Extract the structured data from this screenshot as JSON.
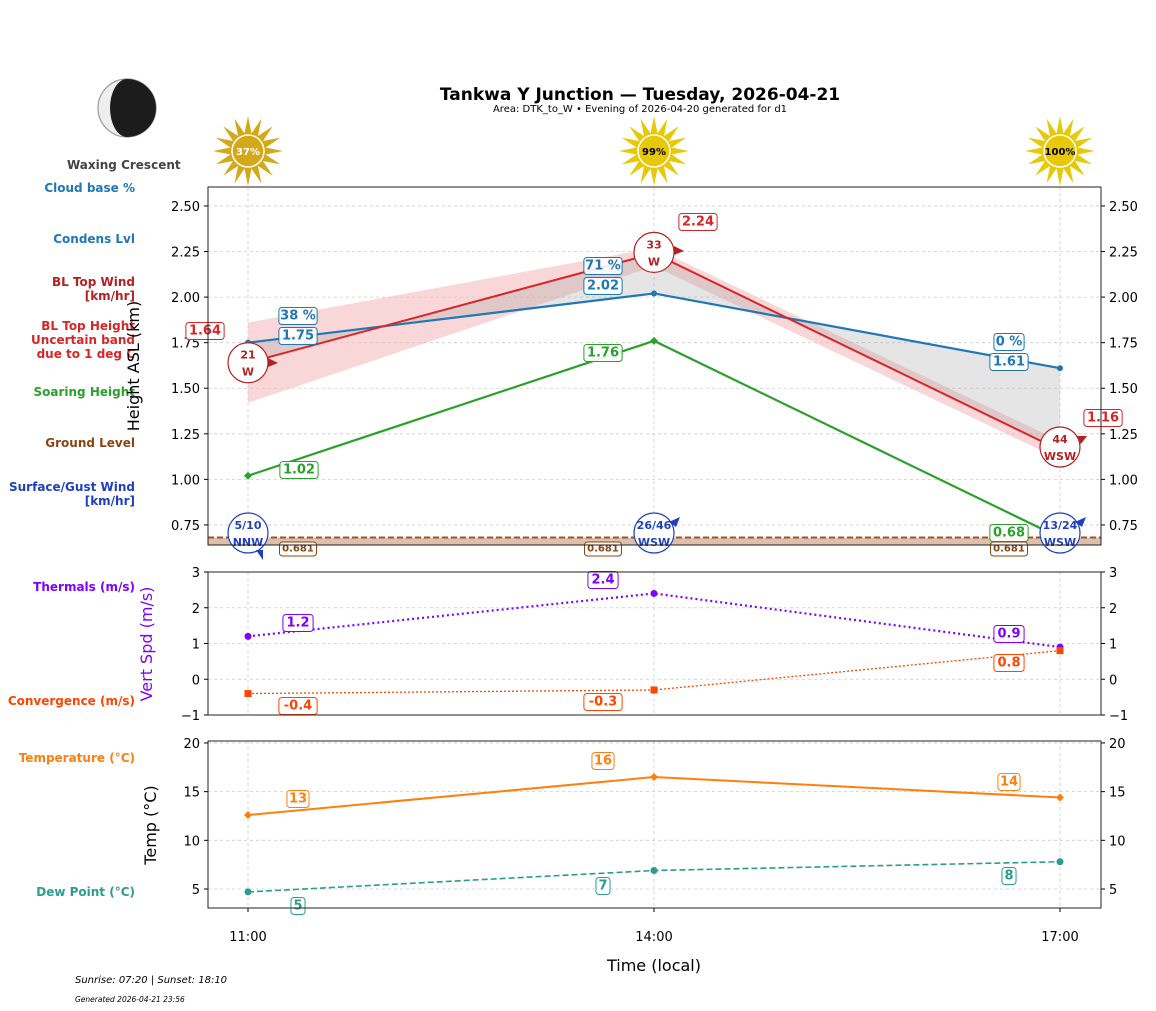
{
  "header": {
    "title": "Tankwa Y Junction — Tuesday, 2026-04-21",
    "subtitle": "Area: DTK_to_W • Evening of 2026-04-20 generated for d1",
    "moon_phase": "Waxing Crescent"
  },
  "side_labels": {
    "cloud_base": "Cloud base %",
    "condens": "Condens Lvl",
    "bl_wind": "BL Top Wind\n[km/hr]",
    "bl_height": "BL Top Height\nUncertain band\ndue to 1 deg C",
    "soaring": "Soaring Height",
    "ground": "Ground Level",
    "surface_wind": "Surface/Gust Wind\n[km/hr]",
    "thermals": "Thermals (m/s)",
    "convergence": "Convergence (m/s)",
    "temperature": "Temperature (°C)",
    "dew": "Dew Point (°C)"
  },
  "footer": {
    "sun": "Sunrise: 07:20 | Sunset: 18:10",
    "generated": "Generated 2026-04-21 23:56"
  },
  "colors": {
    "cloud": "#1f77b4",
    "bl": "#d62728",
    "soar": "#2ca02c",
    "ground": "#8b4513",
    "surface": "#1f3fbf",
    "thermal": "#7f00ff",
    "conv": "#ff4500",
    "temp": "#ff7f0e",
    "dew": "#2a9d8f"
  },
  "chart_data": [
    {
      "type": "line",
      "ylabel": "Height ASL (km)",
      "x": [
        "11:00",
        "14:00",
        "17:00"
      ],
      "ylim": [
        0.64,
        2.604
      ],
      "yticks": [
        "0.75",
        "1.00",
        "1.25",
        "1.50",
        "1.75",
        "2.00",
        "2.25",
        "2.50"
      ],
      "grid": true,
      "sun_percent": [
        "37%",
        "99%",
        "100%"
      ],
      "cloud_percent": [
        "38 %",
        "71 %",
        "0 %"
      ],
      "condens_level": [
        1.75,
        2.02,
        1.61
      ],
      "condens_labels": [
        "1.75",
        "2.02",
        "1.61"
      ],
      "bl_top": [
        1.64,
        2.24,
        1.16
      ],
      "bl_top_labels": [
        "1.64",
        "2.24",
        "1.16"
      ],
      "bl_band_low": [
        1.42,
        2.17,
        1.11
      ],
      "bl_band_high": [
        1.86,
        2.27,
        1.21
      ],
      "bl_wind": [
        {
          "speed": "21",
          "dir": "W"
        },
        {
          "speed": "33",
          "dir": "W"
        },
        {
          "speed": "44",
          "dir": "WSW"
        }
      ],
      "soaring": [
        1.02,
        1.76,
        0.68
      ],
      "soaring_labels": [
        "1.02",
        "1.76",
        "0.68"
      ],
      "ground": [
        0.681,
        0.681,
        0.681
      ],
      "ground_labels": [
        "0.681",
        "0.681",
        "0.681"
      ],
      "surface_wind": [
        {
          "speed": "5/10",
          "dir": "NNW"
        },
        {
          "speed": "26/46",
          "dir": "WSW"
        },
        {
          "speed": "13/24",
          "dir": "WSW"
        }
      ]
    },
    {
      "type": "line",
      "ylabel": "Vert Spd (m/s)",
      "ylim": [
        -1,
        3
      ],
      "yticks": [
        "−1",
        "0",
        "1",
        "2",
        "3"
      ],
      "thermals": [
        1.2,
        2.4,
        0.9
      ],
      "thermal_labels": [
        "1.2",
        "2.4",
        "0.9"
      ],
      "convergence": [
        -0.4,
        -0.3,
        0.8
      ],
      "convergence_labels": [
        "-0.4",
        "-0.3",
        "0.8"
      ]
    },
    {
      "type": "line",
      "ylabel": "Temp (°C)",
      "xlabel": "Time (local)",
      "ylim": [
        3.05,
        20.2
      ],
      "yticks": [
        "5",
        "10",
        "15",
        "20"
      ],
      "temperature": [
        12.6,
        16.5,
        14.4
      ],
      "temperature_labels": [
        "13",
        "16",
        "14"
      ],
      "dew_point": [
        4.7,
        6.9,
        7.8
      ],
      "dew_labels": [
        "5",
        "7",
        "8"
      ]
    }
  ]
}
